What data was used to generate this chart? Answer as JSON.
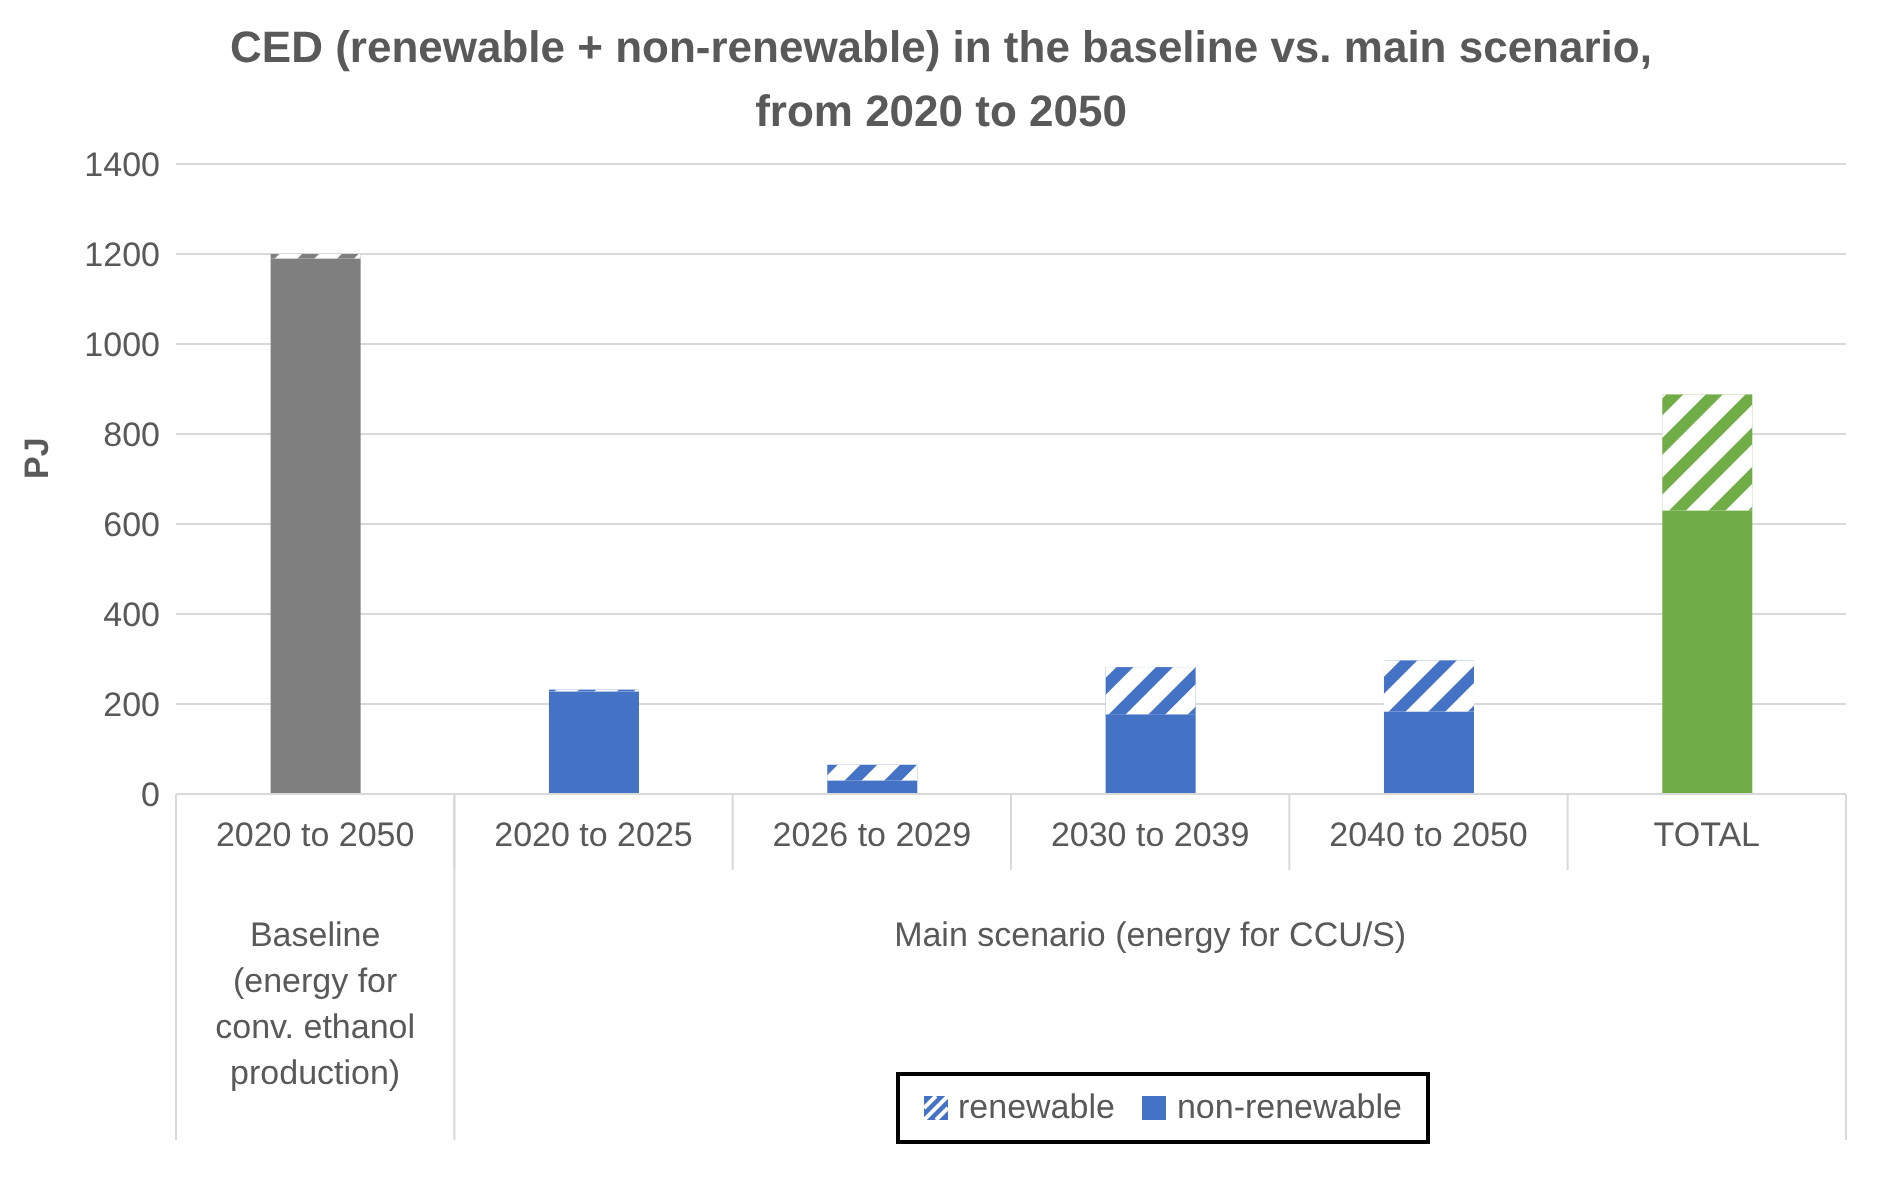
{
  "chart_data": {
    "type": "bar",
    "stacked": true,
    "title": "CED (renewable + non-renewable) in the baseline vs. main scenario, from 2020 to 2050",
    "ylabel": "PJ",
    "categories": [
      "2020 to 2050",
      "2020 to 2025",
      "2026 to 2029",
      "2030 to 2039",
      "2040 to 2050",
      "TOTAL"
    ],
    "series": [
      {
        "name": "non-renewable",
        "color": "#4472c4",
        "colors": [
          "#7f7f7f",
          "#4472c4",
          "#4472c4",
          "#4472c4",
          "#4472c4",
          "#70ad47"
        ],
        "values": [
          1190,
          228,
          30,
          177,
          183,
          630
        ]
      },
      {
        "name": "renewable",
        "color": "#4472c4",
        "colors": [
          "#7f7f7f",
          "#4472c4",
          "#4472c4",
          "#4472c4",
          "#4472c4",
          "#70ad47"
        ],
        "values": [
          10,
          4,
          35,
          105,
          114,
          258
        ]
      }
    ],
    "annotations": [
      "Baseline (energy for conv. ethanol production)",
      "Main scenario (energy for CCU/S)"
    ],
    "ylim": [
      0,
      1400
    ],
    "yticks": [
      0,
      200,
      400,
      600,
      800,
      1000,
      1200,
      1400
    ],
    "grid": "y",
    "legend": "bottom"
  }
}
